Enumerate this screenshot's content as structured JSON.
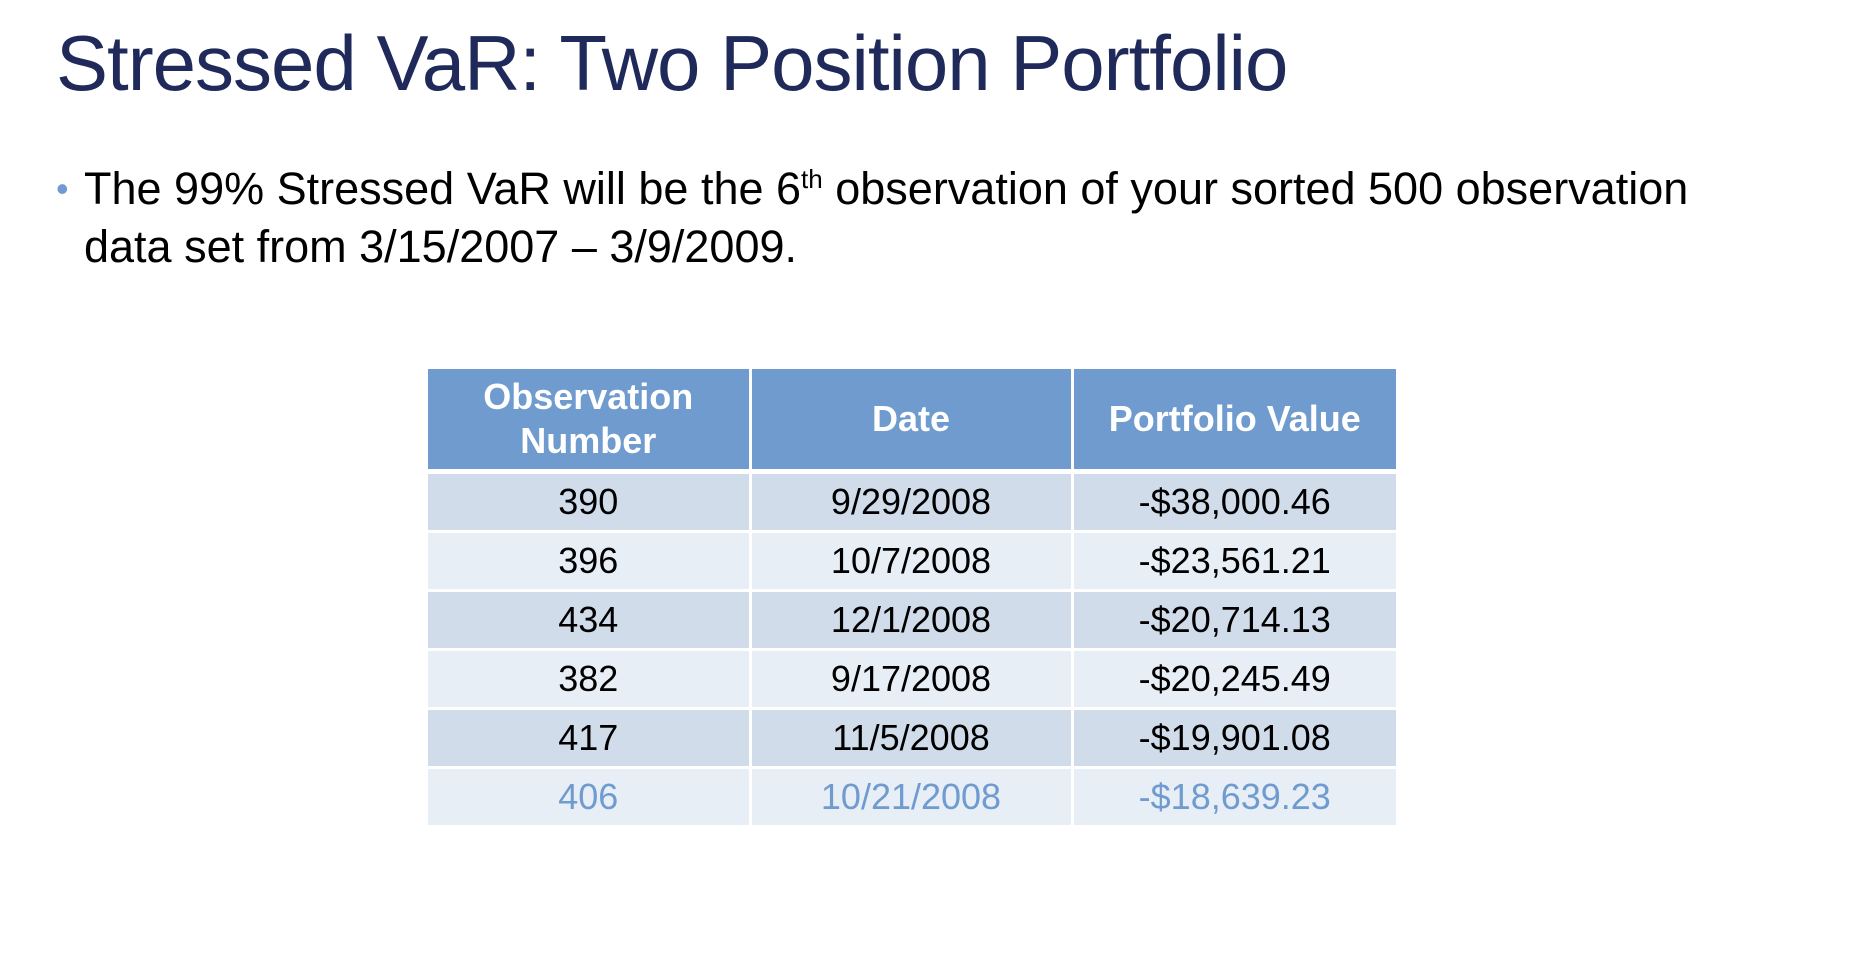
{
  "slide": {
    "title": "Stressed VaR: Two Position Portfolio",
    "bullet": {
      "dot": "•",
      "text_before": "The 99% Stressed VaR will be the 6",
      "superscript": "th",
      "text_after": " observation of your sorted 500 observation data set from 3/15/2007 – 3/9/2009."
    }
  },
  "table": {
    "headers": [
      "Observation Number",
      "Date",
      "Portfolio Value"
    ],
    "rows": [
      [
        "390",
        "9/29/2008",
        "-$38,000.46"
      ],
      [
        "396",
        "10/7/2008",
        "-$23,561.21"
      ],
      [
        "434",
        "12/1/2008",
        "-$20,714.13"
      ],
      [
        "382",
        "9/17/2008",
        "-$20,245.49"
      ],
      [
        "417",
        "11/5/2008",
        "-$19,901.08"
      ],
      [
        "406",
        "10/21/2008",
        "-$18,639.23"
      ]
    ],
    "highlight_row": 5,
    "colors": {
      "header_bg": "#6f9bcf",
      "row_dark": "#d1dcea",
      "row_light": "#e8eef6",
      "highlight_text": "#6f9bcf",
      "title": "#1f2a5a"
    }
  }
}
